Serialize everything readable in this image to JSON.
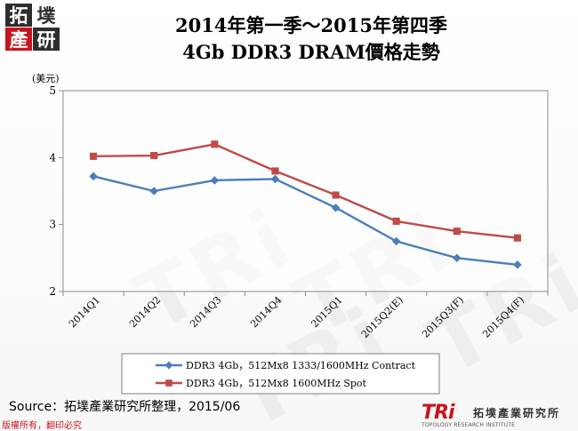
{
  "title_line1": "2014年第一季～2015年第四季",
  "title_line2": "4Gb DDR3 DRAM價格走勢",
  "logo_topleft": [
    "拓",
    "墣",
    "產",
    "研"
  ],
  "watermark_text": "TRi",
  "source_text": "Source：拓墣產業研究所整理，2015/06",
  "copyright_text": "版權所有，翻印必究",
  "logo_bottomright": {
    "mark": "TRi",
    "subtitle": "TOPOLOGY RESEARCH INSTITUTE",
    "name_zh": "拓墣產業研究所"
  },
  "colors": {
    "series_blue": "#4a7ebb",
    "series_red": "#be4b48",
    "brand_red": "#c8141e"
  },
  "chart_data": {
    "type": "line",
    "title": "2014年第一季～2015年第四季 4Gb DDR3 DRAM價格走勢",
    "ylabel": "(美元)",
    "xlabel": "",
    "ylim": [
      2,
      5
    ],
    "yticks": [
      2,
      3,
      4,
      5
    ],
    "grid": false,
    "legend": "bottom",
    "categories": [
      "2014Q1",
      "2014Q2",
      "2014Q3",
      "2014Q4",
      "2015Q1",
      "2015Q2(E)",
      "2015Q3(F)",
      "2015Q4(F)"
    ],
    "series": [
      {
        "name": "DDR3 4Gb，512Mx8 1333/1600MHz Contract",
        "marker": "diamond",
        "color": "#4a7ebb",
        "values": [
          3.72,
          3.5,
          3.66,
          3.68,
          3.25,
          2.75,
          2.5,
          2.4
        ]
      },
      {
        "name": "DDR3 4Gb，512Mx8 1600MHz Spot",
        "marker": "square",
        "color": "#be4b48",
        "values": [
          4.02,
          4.03,
          4.2,
          3.8,
          3.44,
          3.05,
          2.9,
          2.8
        ]
      }
    ]
  }
}
